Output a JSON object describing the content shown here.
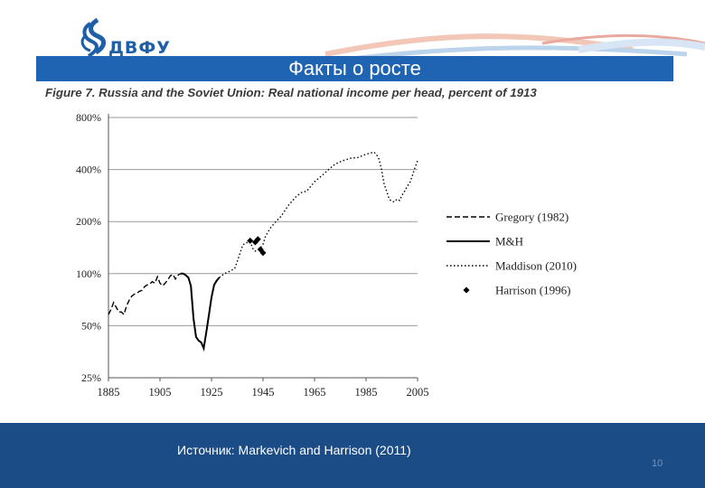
{
  "logo": {
    "text": "ДВФУ"
  },
  "slide": {
    "title": "Факты о росте",
    "source": "Источник: Markevich and Harrison (2011)",
    "page_number": "10"
  },
  "colors": {
    "title_bar": "#1f63b3",
    "footer": "#1b4c86",
    "line": "#000000"
  },
  "chart_data": {
    "type": "line",
    "title": "Figure 7. Russia and the Soviet Union: Real national income per head, percent of 1913",
    "xlabel": "",
    "ylabel": "",
    "y_scale": "log",
    "xlim": [
      1885,
      2005
    ],
    "ylim": [
      25,
      800
    ],
    "x_ticks": [
      "1885",
      "1905",
      "1925",
      "1945",
      "1965",
      "1985",
      "2005"
    ],
    "y_ticks": [
      {
        "value": 800,
        "label": "800%"
      },
      {
        "value": 400,
        "label": "400%"
      },
      {
        "value": 200,
        "label": "200%"
      },
      {
        "value": 100,
        "label": "100%"
      },
      {
        "value": 50,
        "label": "50%"
      },
      {
        "value": 25,
        "label": "25%"
      }
    ],
    "grid": "horizontal",
    "legend_position": "right",
    "series": [
      {
        "name": "Gregory (1982)",
        "style": "dashed",
        "points": [
          [
            1885,
            58
          ],
          [
            1886,
            62
          ],
          [
            1887,
            68
          ],
          [
            1888,
            64
          ],
          [
            1889,
            60
          ],
          [
            1890,
            60
          ],
          [
            1891,
            58
          ],
          [
            1892,
            65
          ],
          [
            1893,
            70
          ],
          [
            1894,
            74
          ],
          [
            1895,
            76
          ],
          [
            1896,
            77
          ],
          [
            1897,
            79
          ],
          [
            1898,
            80
          ],
          [
            1899,
            84
          ],
          [
            1900,
            86
          ],
          [
            1901,
            87
          ],
          [
            1902,
            90
          ],
          [
            1903,
            88
          ],
          [
            1904,
            96
          ],
          [
            1905,
            88
          ],
          [
            1906,
            85
          ],
          [
            1907,
            88
          ],
          [
            1908,
            92
          ],
          [
            1909,
            97
          ],
          [
            1910,
            99
          ],
          [
            1911,
            93
          ],
          [
            1912,
            98
          ],
          [
            1913,
            100
          ]
        ]
      },
      {
        "name": "M&H",
        "style": "solid",
        "points": [
          [
            1913,
            100
          ],
          [
            1914,
            100
          ],
          [
            1915,
            98
          ],
          [
            1916,
            95
          ],
          [
            1917,
            85
          ],
          [
            1918,
            55
          ],
          [
            1919,
            43
          ],
          [
            1920,
            41
          ],
          [
            1921,
            40
          ],
          [
            1922,
            37
          ],
          [
            1923,
            46
          ],
          [
            1924,
            58
          ],
          [
            1925,
            73
          ],
          [
            1926,
            86
          ],
          [
            1927,
            91
          ],
          [
            1928,
            95
          ]
        ]
      },
      {
        "name": "Maddison (2010)",
        "style": "dotted",
        "points": [
          [
            1928,
            95
          ],
          [
            1930,
            100
          ],
          [
            1932,
            103
          ],
          [
            1934,
            107
          ],
          [
            1936,
            130
          ],
          [
            1937,
            145
          ],
          [
            1938,
            150
          ],
          [
            1940,
            153
          ],
          [
            1941,
            140
          ],
          [
            1942,
            135
          ],
          [
            1944,
            140
          ],
          [
            1945,
            148
          ],
          [
            1946,
            165
          ],
          [
            1948,
            185
          ],
          [
            1950,
            200
          ],
          [
            1952,
            215
          ],
          [
            1955,
            250
          ],
          [
            1958,
            280
          ],
          [
            1960,
            295
          ],
          [
            1962,
            300
          ],
          [
            1965,
            340
          ],
          [
            1968,
            370
          ],
          [
            1970,
            395
          ],
          [
            1973,
            430
          ],
          [
            1976,
            450
          ],
          [
            1979,
            465
          ],
          [
            1982,
            470
          ],
          [
            1985,
            490
          ],
          [
            1987,
            500
          ],
          [
            1988,
            505
          ],
          [
            1989,
            490
          ],
          [
            1990,
            460
          ],
          [
            1991,
            400
          ],
          [
            1992,
            330
          ],
          [
            1993,
            300
          ],
          [
            1994,
            270
          ],
          [
            1995,
            262
          ],
          [
            1996,
            260
          ],
          [
            1997,
            270
          ],
          [
            1998,
            265
          ],
          [
            1999,
            285
          ],
          [
            2000,
            300
          ],
          [
            2001,
            320
          ],
          [
            2002,
            335
          ],
          [
            2003,
            370
          ],
          [
            2004,
            410
          ],
          [
            2005,
            450
          ]
        ]
      },
      {
        "name": "Harrison (1996)",
        "style": "markers",
        "points": [
          [
            1940,
            155
          ],
          [
            1942,
            152
          ],
          [
            1943,
            158
          ],
          [
            1944,
            138
          ],
          [
            1945,
            132
          ]
        ]
      }
    ]
  }
}
